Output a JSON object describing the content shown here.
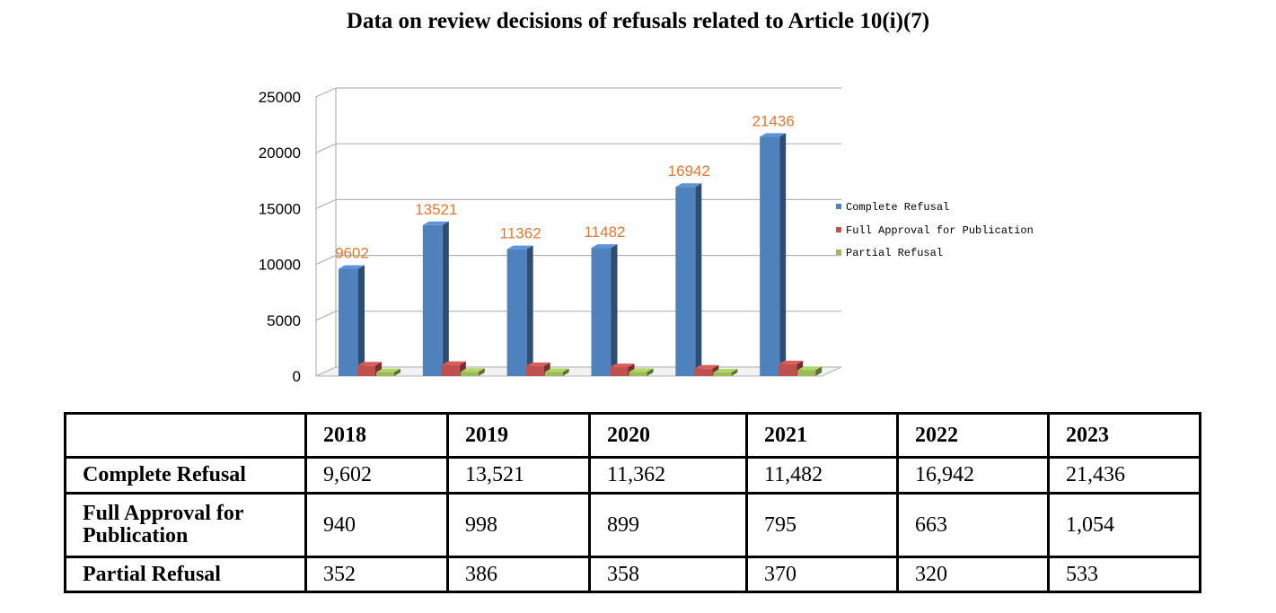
{
  "title": "Data on review decisions of refusals related to Article 10(i)(7)",
  "chart_data": {
    "type": "bar",
    "categories": [
      "2018",
      "2019",
      "2020",
      "2021",
      "2022",
      "2023"
    ],
    "series": [
      {
        "name": "Complete Refusal",
        "values": [
          9602,
          13521,
          11362,
          11482,
          16942,
          21436
        ],
        "color": "#4f81bd"
      },
      {
        "name": "Full Approval for Publication",
        "values": [
          940,
          998,
          899,
          795,
          663,
          1054
        ],
        "color": "#c0504d"
      },
      {
        "name": "Partial Refusal",
        "values": [
          352,
          386,
          358,
          370,
          320,
          533
        ],
        "color": "#9bbb59"
      }
    ],
    "data_labels": [
      "9602",
      "13521",
      "11362",
      "11482",
      "16942",
      "21436"
    ],
    "yticks": [
      "0",
      "5000",
      "10000",
      "15000",
      "20000",
      "25000"
    ],
    "ylim": [
      0,
      25000
    ],
    "grid": true,
    "legend": "right",
    "style": "3d-column"
  },
  "table": {
    "header": [
      "",
      "2018",
      "2019",
      "2020",
      "2021",
      "2022",
      "2023"
    ],
    "rows": [
      {
        "label": "Complete Refusal",
        "values": [
          "9,602",
          "13,521",
          "11,362",
          "11,482",
          "16,942",
          "21,436"
        ]
      },
      {
        "label": "Full Approval for Publication",
        "values": [
          "940",
          "998",
          "899",
          "795",
          "663",
          "1,054"
        ]
      },
      {
        "label": "Partial Refusal",
        "values": [
          "352",
          "386",
          "358",
          "370",
          "320",
          "533"
        ]
      }
    ]
  }
}
